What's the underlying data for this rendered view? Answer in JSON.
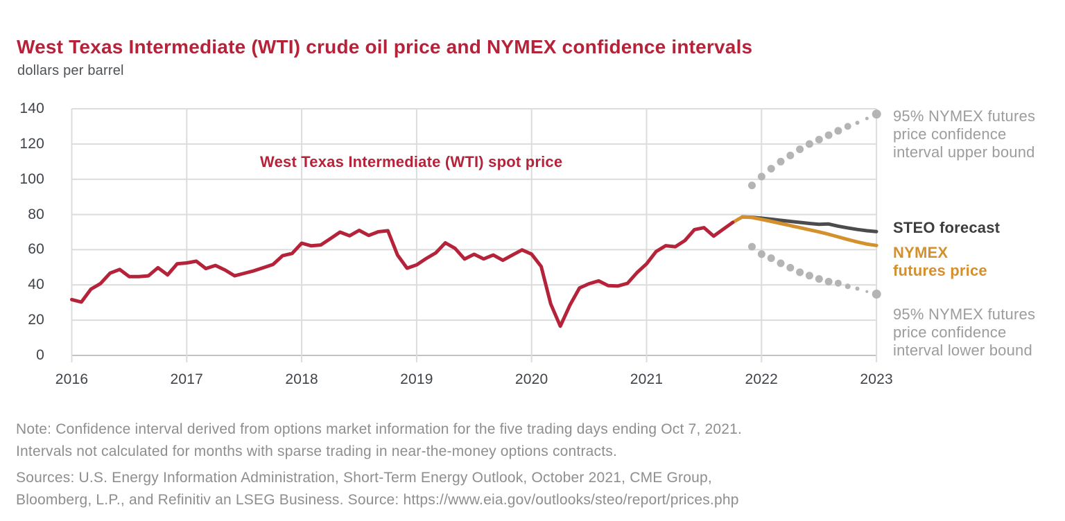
{
  "title": "West Texas Intermediate (WTI) crude oil price and NYMEX confidence intervals",
  "subtitle": "dollars per barrel",
  "colors": {
    "crimson": "#b5233a",
    "orange": "#d4902c",
    "steo_gray": "#4c4c4e",
    "steo_label_gray": "#3d3d3f",
    "dot_gray": "#b4b4b4",
    "ci_label_gray": "#9c9c9c",
    "tick_label": "#3f444a",
    "subtitle_gray": "#4e5256",
    "note_gray": "#8e8e8e",
    "gridline": "#dcdcdc",
    "axis": "#c2c2c2"
  },
  "chart_data": {
    "type": "line",
    "title": "West Texas Intermediate (WTI) crude oil price and NYMEX confidence intervals",
    "ylabel": "dollars per barrel",
    "xlabel": "",
    "grid": true,
    "xlim": [
      2016,
      2023.083
    ],
    "ylim": [
      0,
      140
    ],
    "x_ticks": [
      "2016",
      "2017",
      "2018",
      "2019",
      "2020",
      "2021",
      "2022",
      "2023"
    ],
    "x_tick_years": [
      2016,
      2017,
      2018,
      2019,
      2020,
      2021,
      2022,
      2023
    ],
    "y_ticks": [
      0,
      20,
      40,
      60,
      80,
      100,
      120,
      140
    ],
    "series": [
      {
        "name": "West Texas Intermediate (WTI) spot price",
        "type": "line",
        "color": "#b5233a",
        "width": 5,
        "x_start_year": 2016.0,
        "x_step_years": 0.083333,
        "values": [
          31.7,
          30.3,
          37.6,
          40.8,
          46.7,
          48.8,
          44.7,
          44.7,
          45.2,
          49.8,
          45.7,
          52.0,
          52.5,
          53.5,
          49.3,
          51.1,
          48.5,
          45.2,
          46.6,
          48.0,
          49.8,
          51.6,
          56.6,
          57.9,
          63.7,
          62.2,
          62.7,
          66.3,
          70.0,
          67.9,
          71.0,
          68.1,
          70.2,
          70.8,
          57.0,
          49.5,
          51.4,
          55.0,
          58.2,
          63.9,
          60.8,
          54.7,
          57.4,
          54.8,
          57.0,
          54.0,
          57.0,
          59.9,
          57.5,
          50.5,
          29.2,
          16.6,
          28.6,
          38.3,
          40.7,
          42.3,
          39.6,
          39.4,
          40.9,
          47.0,
          52.0,
          59.0,
          62.3,
          61.7,
          65.2,
          71.4,
          72.5,
          67.7,
          71.6,
          75.5
        ]
      },
      {
        "name": "NYMEX futures price",
        "type": "line",
        "color": "#d4902c",
        "width": 5,
        "x_start_year": 2021.75,
        "x_step_years": 0.083333,
        "values": [
          75.5,
          78.6,
          78.3,
          77.2,
          76.1,
          74.9,
          73.7,
          72.5,
          71.3,
          70.1,
          68.8,
          67.3,
          65.8,
          64.4,
          63.2,
          62.4
        ]
      },
      {
        "name": "STEO forecast",
        "type": "line",
        "color": "#4c4c4e",
        "width": 5,
        "x_start_year": 2021.833,
        "x_step_years": 0.083333,
        "values": [
          78.6,
          78.4,
          77.9,
          77.3,
          76.7,
          76.1,
          75.5,
          74.9,
          74.4,
          74.6,
          73.4,
          72.4,
          71.5,
          70.8,
          70.3
        ]
      },
      {
        "name": "95% NYMEX futures price confidence interval upper bound",
        "type": "dots",
        "color": "#b4b4b4",
        "x_start_year": 2021.917,
        "x_step_years": 0.083333,
        "values": [
          96.5,
          101.5,
          106.0,
          110.0,
          113.5,
          117.0,
          120.0,
          122.5,
          125.0,
          127.5,
          130.0,
          132.0,
          134.5,
          137.0
        ],
        "radii": [
          5.5,
          5.5,
          5.5,
          5.5,
          5.5,
          5.5,
          5.5,
          5.5,
          5.5,
          5.5,
          5.0,
          3.0,
          2.5,
          6.5
        ]
      },
      {
        "name": "95% NYMEX futures price confidence interval lower bound",
        "type": "dots",
        "color": "#b4b4b4",
        "x_start_year": 2021.917,
        "x_step_years": 0.083333,
        "values": [
          61.7,
          57.5,
          55.2,
          52.3,
          49.8,
          47.2,
          45.3,
          43.4,
          41.9,
          41.0,
          39.2,
          37.9,
          36.2,
          34.8
        ],
        "radii": [
          5.5,
          5.5,
          5.5,
          5.5,
          5.5,
          5.5,
          5.5,
          5.5,
          5.5,
          5.0,
          4.0,
          3.0,
          2.0,
          6.5
        ]
      }
    ]
  },
  "annotations": {
    "spot_price_label": "West Texas Intermediate (WTI) spot price",
    "upper_bound_lines": [
      "95% NYMEX futures",
      "price confidence",
      "interval upper bound"
    ],
    "steo_label": "STEO forecast",
    "nymex_lines": [
      "NYMEX",
      "futures price"
    ],
    "lower_bound_lines": [
      "95% NYMEX futures",
      "price confidence",
      "interval lower bound"
    ]
  },
  "notes": {
    "note_lines": [
      "Note: Confidence interval derived from options market information for the five trading days ending Oct 7, 2021.",
      "Intervals not calculated for months with sparse trading in near-the-money options contracts."
    ],
    "source_lines": [
      "Sources: U.S. Energy Information Administration, Short-Term Energy Outlook, October 2021, CME Group,",
      "Bloomberg, L.P., and Refinitiv an LSEG Business. Source: https://www.eia.gov/outlooks/steo/report/prices.php"
    ]
  }
}
